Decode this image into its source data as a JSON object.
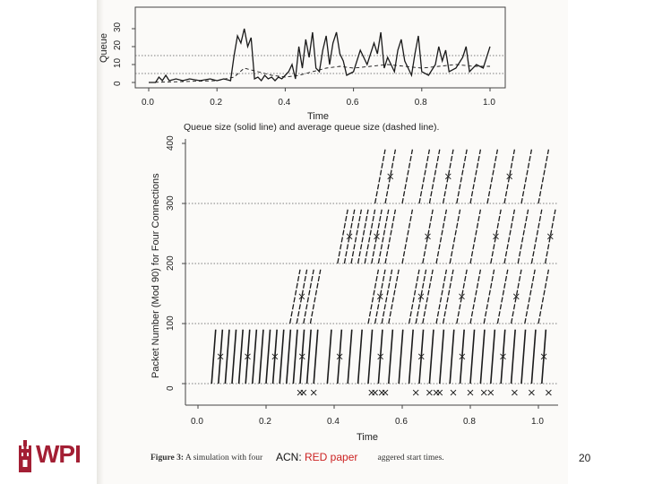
{
  "slide": {
    "footer_title": "ACN: ",
    "footer_link": "RED paper",
    "page_number": "20",
    "logo_text": "WPI",
    "accent_color": "#a31f34"
  },
  "figure": {
    "caption_bold": "Figure 3:",
    "caption_visible_start": " A simulation with four ",
    "caption_visible_end": "aggered start times."
  },
  "chart_data": [
    {
      "type": "line",
      "ylabel": "Queue",
      "xlabel": "Time",
      "caption": "Queue size (solid line) and average queue size (dashed line).",
      "xlim": [
        0.0,
        1.0
      ],
      "ylim": [
        0,
        30
      ],
      "x_ticks": [
        "0.0",
        "0.2",
        "0.4",
        "0.6",
        "0.8",
        "1.0"
      ],
      "y_ticks": [
        "0",
        "10",
        "20",
        "30"
      ],
      "thresholds": [
        5,
        15
      ],
      "series": [
        {
          "style": "solid",
          "x": [
            0.0,
            0.02,
            0.03,
            0.04,
            0.05,
            0.06,
            0.08,
            0.1,
            0.12,
            0.15,
            0.18,
            0.2,
            0.22,
            0.24,
            0.25,
            0.26,
            0.27,
            0.28,
            0.29,
            0.3,
            0.31,
            0.32,
            0.33,
            0.34,
            0.35,
            0.36,
            0.37,
            0.38,
            0.39,
            0.4,
            0.41,
            0.42,
            0.43,
            0.44,
            0.45,
            0.46,
            0.47,
            0.48,
            0.49,
            0.5,
            0.51,
            0.52,
            0.53,
            0.54,
            0.55,
            0.56,
            0.57,
            0.58,
            0.6,
            0.62,
            0.64,
            0.66,
            0.67,
            0.68,
            0.69,
            0.7,
            0.71,
            0.72,
            0.73,
            0.74,
            0.75,
            0.76,
            0.77,
            0.78,
            0.79,
            0.8,
            0.82,
            0.84,
            0.85,
            0.86,
            0.87,
            0.88,
            0.9,
            0.92,
            0.93,
            0.94,
            0.96,
            0.98,
            1.0
          ],
          "y": [
            0,
            0,
            3,
            1,
            4,
            1,
            2,
            1,
            2,
            1,
            2,
            1,
            2,
            1,
            15,
            26,
            22,
            30,
            20,
            25,
            2,
            3,
            1,
            4,
            2,
            3,
            1,
            3,
            2,
            4,
            6,
            10,
            2,
            20,
            8,
            24,
            14,
            28,
            8,
            6,
            18,
            26,
            10,
            22,
            28,
            16,
            12,
            4,
            6,
            18,
            10,
            22,
            16,
            28,
            8,
            14,
            10,
            6,
            18,
            24,
            12,
            8,
            4,
            16,
            26,
            6,
            4,
            10,
            20,
            12,
            18,
            6,
            8,
            14,
            20,
            6,
            10,
            8,
            20
          ]
        },
        {
          "style": "dashed",
          "x": [
            0.0,
            0.1,
            0.2,
            0.25,
            0.28,
            0.32,
            0.36,
            0.4,
            0.44,
            0.48,
            0.52,
            0.56,
            0.6,
            0.65,
            0.7,
            0.75,
            0.8,
            0.85,
            0.9,
            0.95,
            1.0
          ],
          "y": [
            0,
            0.5,
            1,
            3,
            8,
            6,
            4,
            3,
            4,
            6,
            8,
            9,
            8,
            9,
            10,
            9,
            8,
            9,
            10,
            9,
            9
          ]
        }
      ]
    },
    {
      "type": "scatter",
      "ylabel": "Packet Number (Mod 90) for Four Connections",
      "xlabel": "Time",
      "xlim": [
        0.0,
        1.05
      ],
      "ylim": [
        0,
        400
      ],
      "x_ticks": [
        "0.0",
        "0.2",
        "0.4",
        "0.6",
        "0.8",
        "1.0"
      ],
      "y_ticks": [
        "0",
        "100",
        "200",
        "300",
        "400"
      ],
      "band_lines": [
        0,
        100,
        200,
        300
      ],
      "series": [
        {
          "name": "band-0",
          "band": 0,
          "segments_x": [
            0.04,
            0.06,
            0.08,
            0.1,
            0.12,
            0.14,
            0.16,
            0.18,
            0.2,
            0.22,
            0.24,
            0.26,
            0.28,
            0.3,
            0.32,
            0.34,
            0.38,
            0.41,
            0.44,
            0.47,
            0.5,
            0.53,
            0.56,
            0.59,
            0.62,
            0.65,
            0.68,
            0.71,
            0.74,
            0.77,
            0.8,
            0.83,
            0.86,
            0.89,
            0.92,
            0.95,
            0.98,
            1.01
          ]
        },
        {
          "name": "band-1",
          "band": 1,
          "segments_x": [
            0.27,
            0.29,
            0.31,
            0.33,
            0.5,
            0.52,
            0.54,
            0.56,
            0.62,
            0.64,
            0.66,
            0.7,
            0.72,
            0.76,
            0.8,
            0.84,
            0.88,
            0.92,
            0.96,
            1.0
          ]
        },
        {
          "name": "band-2",
          "band": 2,
          "segments_x": [
            0.41,
            0.43,
            0.45,
            0.47,
            0.49,
            0.51,
            0.53,
            0.55,
            0.6,
            0.66,
            0.7,
            0.74,
            0.8,
            0.86,
            0.9,
            0.94,
            0.98,
            1.02
          ]
        },
        {
          "name": "band-3",
          "band": 3,
          "segments_x": [
            0.52,
            0.55,
            0.6,
            0.65,
            0.68,
            0.72,
            0.76,
            0.8,
            0.85,
            0.9,
            0.95,
            1.0
          ]
        }
      ],
      "drop_marks_x": [
        0.3,
        0.31,
        0.34,
        0.51,
        0.52,
        0.54,
        0.55,
        0.64,
        0.68,
        0.7,
        0.71,
        0.75,
        0.8,
        0.84,
        0.86,
        0.93,
        0.98,
        1.03
      ],
      "drop_marks_y": -15
    }
  ]
}
